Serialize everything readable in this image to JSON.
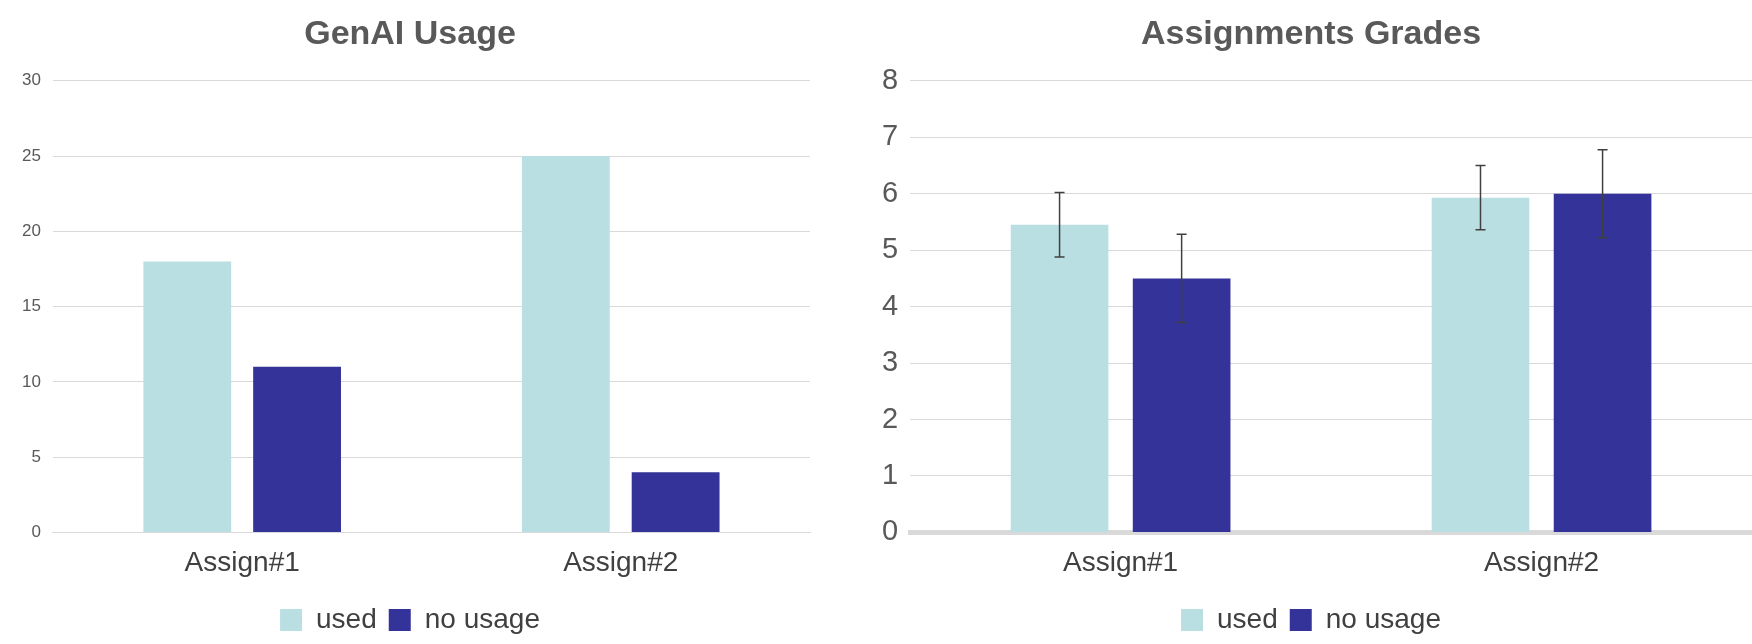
{
  "chart_data": [
    {
      "type": "bar",
      "title": "GenAI Usage",
      "categories": [
        "Assign#1",
        "Assign#2"
      ],
      "series": [
        {
          "name": "used",
          "color": "#badfe3",
          "values": [
            18,
            25
          ]
        },
        {
          "name": "no usage",
          "color": "#343399",
          "values": [
            11,
            4
          ]
        }
      ],
      "ylim": [
        0,
        30
      ],
      "yticks": [
        0,
        5,
        10,
        15,
        20,
        25,
        30
      ],
      "grid": "y",
      "legend": "bottom"
    },
    {
      "type": "bar",
      "title": "Assignments Grades",
      "categories": [
        "Assign#1",
        "Assign#2"
      ],
      "series": [
        {
          "name": "used",
          "color": "#badfe3",
          "values": [
            5.45,
            5.93
          ],
          "errors": [
            0.57,
            0.57
          ]
        },
        {
          "name": "no usage",
          "color": "#343399",
          "values": [
            4.5,
            6.0
          ],
          "errors": [
            0.78,
            0.78
          ]
        }
      ],
      "ylim": [
        0,
        8
      ],
      "yticks": [
        0,
        1,
        2,
        3,
        4,
        5,
        6,
        7,
        8
      ],
      "grid": "y",
      "legend": "bottom"
    }
  ]
}
